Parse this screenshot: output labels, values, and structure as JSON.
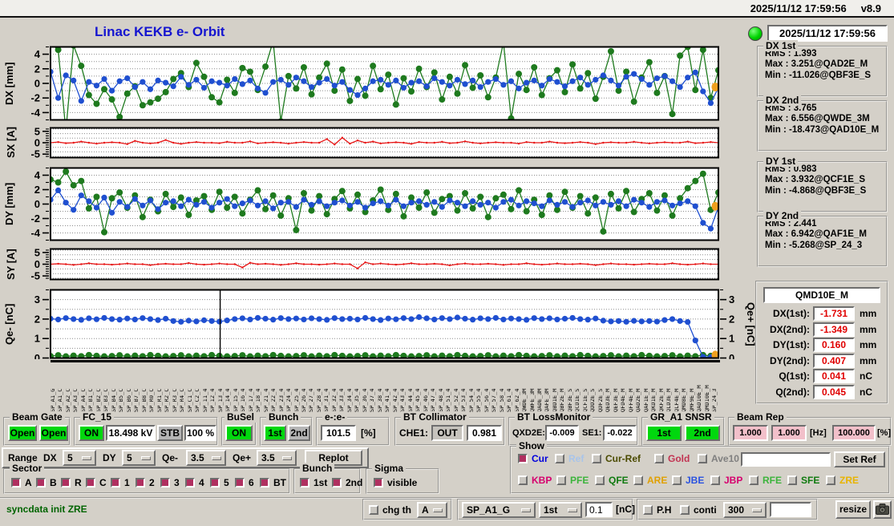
{
  "window": {
    "datetime": "2025/11/12 17:59:56",
    "version": "v8.9"
  },
  "header": {
    "title": "Linac KEKB e- Orbit",
    "status_datetime": "2025/11/12 17:59:56"
  },
  "stats": [
    {
      "title": "DX 1st",
      "rows": [
        [
          "RMS :",
          "1.393"
        ],
        [
          "Max :",
          "3.251@QAD2E_M"
        ],
        [
          "Min :",
          "-11.026@QBF3E_S"
        ]
      ]
    },
    {
      "title": "DX 2nd",
      "rows": [
        [
          "RMS :",
          "3.765"
        ],
        [
          "Max :",
          "6.556@QWDE_3M"
        ],
        [
          "Min :",
          "-18.473@QAD10E_M"
        ]
      ]
    },
    {
      "title": "DY 1st",
      "rows": [
        [
          "RMS :",
          "0.983"
        ],
        [
          "Max :",
          "3.932@QCF1E_S"
        ],
        [
          "Min :",
          "-4.868@QBF3E_S"
        ]
      ]
    },
    {
      "title": "DY 2nd",
      "rows": [
        [
          "RMS :",
          "2.441"
        ],
        [
          "Max :",
          "6.942@QAF1E_M"
        ],
        [
          "Min :",
          "-5.268@SP_24_3"
        ]
      ]
    }
  ],
  "monitor": {
    "title": "QMD10E_M",
    "rows": [
      {
        "label": "DX(1st):",
        "value": "-1.731",
        "unit": "mm"
      },
      {
        "label": "DX(2nd):",
        "value": "-1.349",
        "unit": "mm"
      },
      {
        "label": "DY(1st):",
        "value": "0.160",
        "unit": "mm"
      },
      {
        "label": "DY(2nd):",
        "value": "0.407",
        "unit": "mm"
      },
      {
        "label": "Q(1st):",
        "value": "0.041",
        "unit": "nC"
      },
      {
        "label": "Q(2nd):",
        "value": "0.045",
        "unit": "nC"
      }
    ]
  },
  "chart_data": {
    "colors": {
      "blue": "#1f4fd0",
      "green": "#1e7a1e",
      "red": "#e81414",
      "orange": "#f0a020"
    },
    "dx": {
      "type": "line",
      "ylabel": "DX [mm]",
      "ylim": [
        -5,
        5
      ],
      "ticks": [
        4,
        2,
        0,
        -2,
        -4
      ],
      "minor": 1,
      "grid": 1,
      "end": -0.5,
      "blue": [
        1.6,
        -2.0,
        1.1,
        0.4,
        -2.4,
        0.2,
        -0.3,
        0.6,
        -1.0,
        0.3,
        0.7,
        -0.5,
        0.2,
        -0.8,
        0.4,
        0.1,
        -0.4,
        0.9,
        -0.2,
        0.5,
        -0.6,
        0.3,
        0.1,
        -0.3,
        0.6,
        -0.1,
        0.4,
        -0.7,
        -1.3,
        0.2,
        0.5,
        -0.2,
        0.8,
        0.3,
        -0.5,
        0.1,
        0.6,
        -0.3,
        0.2,
        -0.9,
        -1.6,
        -0.7,
        0.3,
        0.5,
        -0.2,
        0.4,
        -0.6,
        0.1,
        0.3,
        -0.4,
        0.7,
        0.2,
        -0.3,
        0.5,
        -0.1,
        0.4,
        -0.5,
        0.2,
        0.6,
        -0.2,
        0.3,
        -0.7,
        0.1,
        0.4,
        -0.3,
        0.6,
        0.2,
        -0.4,
        0.3,
        0.8,
        -0.2,
        0.5,
        1.1,
        0.4,
        -0.3,
        0.9,
        1.3,
        0.6,
        -0.2,
        0.7,
        1.0,
        0.3,
        -0.5,
        0.8,
        1.5,
        -1.1,
        -2.7,
        -0.6
      ],
      "green": [
        5.5,
        4.6,
        -6.5,
        5.2,
        2.4,
        -1.6,
        -2.8,
        -0.8,
        -2.2,
        -4.6,
        -1.4,
        -0.4,
        -3.0,
        -2.6,
        -2.1,
        -1.2,
        0.6,
        1.4,
        -0.5,
        2.8,
        0.9,
        -1.9,
        -2.6,
        0.5,
        -1.3,
        2.1,
        1.6,
        -0.9,
        2.3,
        5.8,
        -5.2,
        1.0,
        -0.7,
        2.2,
        -1.5,
        0.8,
        2.7,
        -1.0,
        1.9,
        -2.4,
        0.6,
        -1.7,
        2.4,
        -0.8,
        1.2,
        -2.9,
        0.7,
        -1.1,
        2.0,
        -0.5,
        1.5,
        -2.2,
        0.9,
        -1.4,
        2.5,
        -0.6,
        1.1,
        -1.9,
        0.8,
        5.6,
        -4.8,
        1.3,
        -0.9,
        2.2,
        -1.6,
        0.7,
        1.8,
        -1.2,
        2.6,
        -0.7,
        1.4,
        -2.1,
        0.9,
        4.4,
        -1.0,
        1.6,
        -2.5,
        0.8,
        2.9,
        -1.3,
        1.0,
        -4.2,
        3.8,
        5.0,
        -0.9,
        4.6,
        -2.0,
        1.8
      ]
    },
    "sx": {
      "type": "line",
      "ylabel": "SX [A]",
      "ylim": [
        -6.5,
        6.5
      ],
      "ticks": [
        5,
        0,
        -5
      ],
      "minor": 1,
      "grid": 2,
      "red": [
        0,
        0.3,
        -0.2,
        0,
        0.5,
        0,
        -0.4,
        0,
        0.2,
        0,
        -0.6,
        0.8,
        0,
        -0.3,
        0,
        1.2,
        0,
        -0.5,
        0,
        0.3,
        0,
        0,
        -0.2,
        0.4,
        0,
        0,
        0.6,
        -0.3,
        0,
        0.2,
        0,
        -0.4,
        0,
        0.3,
        0,
        0,
        1.6,
        -0.8,
        2.2,
        -0.4,
        1.0,
        0,
        0.5,
        -0.3,
        0,
        0.2,
        0,
        -0.5,
        0.3,
        0,
        0,
        0.4,
        -0.2,
        0,
        0.6,
        0,
        -0.3,
        0,
        0.2,
        0,
        0,
        -0.4,
        0.3,
        0,
        0,
        0.5,
        0,
        -0.2,
        0,
        0.3,
        0,
        -0.6,
        0,
        0.2,
        0,
        0,
        0.4,
        0,
        -0.3,
        0,
        0.2,
        0,
        0,
        0.5,
        -0.2,
        0,
        0.3,
        0
      ]
    },
    "dy": {
      "type": "line",
      "ylabel": "DY [mm]",
      "ylim": [
        -5,
        5
      ],
      "ticks": [
        4,
        2,
        0,
        -2,
        -4
      ],
      "minor": 1,
      "grid": 1,
      "end": -0.3,
      "blue": [
        0.6,
        1.9,
        0.2,
        -0.8,
        1.2,
        0.4,
        -0.5,
        0.9,
        -1.2,
        0.3,
        -0.4,
        0.7,
        -0.2,
        0.5,
        -0.7,
        0.2,
        0.4,
        -0.3,
        0.6,
        -0.1,
        0.3,
        -0.5,
        0.2,
        0.7,
        -0.3,
        0.1,
        0.5,
        -0.2,
        0.4,
        -0.6,
        0.2,
        0.3,
        -0.4,
        0.6,
        -0.1,
        0.4,
        -0.3,
        0.2,
        0.5,
        -0.2,
        0.3,
        -0.5,
        0.1,
        0.4,
        -0.2,
        0.6,
        -0.3,
        0.2,
        0.4,
        -0.1,
        0.3,
        -0.4,
        0.5,
        0.2,
        -0.3,
        0.4,
        -0.1,
        0.2,
        -0.5,
        0.3,
        0.6,
        -0.2,
        0.4,
        0.1,
        -0.3,
        0.5,
        -0.1,
        0.3,
        -0.4,
        0.2,
        0.5,
        -0.2,
        0.3,
        -0.1,
        0.4,
        -0.3,
        0.6,
        0.2,
        -0.4,
        0.3,
        0.5,
        -0.2,
        0.1,
        0.4,
        -0.3,
        -2.6,
        -3.4,
        -0.4
      ],
      "green": [
        3.4,
        3.0,
        4.5,
        2.6,
        3.2,
        -0.6,
        1.0,
        -3.9,
        0.8,
        1.6,
        -0.5,
        1.2,
        -1.8,
        0.6,
        -1.0,
        1.4,
        -0.4,
        0.9,
        -1.5,
        0.5,
        1.1,
        -0.8,
        1.7,
        -0.5,
        1.0,
        -1.3,
        0.6,
        1.9,
        -0.7,
        1.2,
        -1.6,
        0.8,
        -3.6,
        1.5,
        -0.9,
        1.1,
        -1.4,
        0.7,
        1.8,
        -0.6,
        1.3,
        -1.1,
        0.5,
        2.0,
        -0.8,
        1.4,
        -1.7,
        0.9,
        -0.5,
        1.6,
        -1.2,
        0.7,
        1.1,
        -0.9,
        1.5,
        -0.6,
        1.0,
        -1.8,
        0.8,
        1.3,
        -0.7,
        1.9,
        -1.0,
        0.6,
        -1.5,
        1.2,
        -0.8,
        1.7,
        -0.5,
        1.1,
        -1.3,
        0.9,
        -3.8,
        1.4,
        -0.6,
        1.8,
        -1.1,
        0.7,
        1.5,
        -0.9,
        1.2,
        -1.6,
        0.8,
        2.2,
        3.2,
        4.2,
        -0.8,
        1.6
      ]
    },
    "sy": {
      "type": "line",
      "ylabel": "SY [A]",
      "ylim": [
        -6.5,
        6.5
      ],
      "ticks": [
        5,
        0,
        -5
      ],
      "minor": 1,
      "grid": 2,
      "red": [
        0,
        0.2,
        0,
        -0.3,
        0,
        0.4,
        0,
        0,
        -0.2,
        0,
        0.3,
        0,
        0,
        -0.4,
        0,
        0.2,
        0,
        0,
        0.5,
        0,
        -0.2,
        0,
        0.3,
        0,
        0,
        -1.4,
        0.6,
        0,
        0.2,
        0,
        -0.3,
        0,
        0.4,
        0,
        0,
        -0.2,
        0,
        0.3,
        0,
        0,
        -1.8,
        0.8,
        0,
        0.3,
        0,
        -0.2,
        0,
        0.4,
        0,
        0,
        0.2,
        0,
        -0.5,
        0,
        0.3,
        0,
        0,
        0.2,
        0,
        -0.3,
        0,
        0,
        0.4,
        0,
        -0.2,
        0,
        0.3,
        0,
        0,
        0.2,
        0,
        -0.4,
        0,
        0.3,
        0,
        0,
        -0.2,
        0,
        0.2,
        0,
        0,
        0.4,
        0,
        -0.2,
        0,
        0.3,
        0,
        0
      ]
    },
    "q": {
      "type": "line",
      "ylabel_left": "Qe- [nC]",
      "ylabel_right": "Qe+ [nC]",
      "ylim": [
        0,
        3.5
      ],
      "ticks": [
        3,
        2,
        1,
        0
      ],
      "minor": 0.5,
      "grid": 0.5,
      "cursor": 0.254,
      "end": 0.15,
      "blue": [
        2.02,
        1.98,
        2.05,
        2.0,
        1.96,
        2.04,
        1.99,
        2.06,
        2.0,
        1.97,
        2.03,
        1.98,
        2.05,
        2.0,
        1.95,
        2.02,
        1.9,
        1.86,
        1.92,
        1.88,
        1.94,
        1.9,
        1.87,
        1.93,
        2.0,
        2.04,
        1.98,
        2.06,
        2.02,
        1.97,
        2.05,
        2.0,
        2.03,
        1.98,
        2.04,
        2.0,
        1.96,
        2.05,
        2.0,
        2.02,
        1.98,
        2.06,
        2.0,
        1.95,
        2.03,
        1.99,
        2.05,
        2.0,
        2.1,
        2.04,
        1.98,
        2.05,
        2.0,
        2.08,
        2.02,
        1.97,
        2.04,
        2.0,
        2.06,
        1.98,
        2.03,
        2.0,
        1.96,
        2.05,
        2.0,
        2.04,
        1.98,
        2.02,
        2.06,
        2.0,
        1.97,
        2.03,
        1.92,
        1.88,
        1.9,
        1.86,
        1.91,
        1.88,
        1.9,
        1.87,
        1.95,
        2.0,
        1.9,
        1.85,
        0.9,
        0.06,
        0.05,
        0.05
      ],
      "green": [
        0.1,
        0.14,
        0.08,
        0.12,
        0.09,
        0.15,
        0.11,
        0.08,
        0.1,
        0.14,
        0.08,
        0.12,
        0.09,
        0.15,
        0.11,
        0.08,
        0.1,
        0.14,
        0.08,
        0.12,
        0.09,
        0.15,
        0.11,
        0.08,
        0.1,
        0.14,
        0.08,
        0.12,
        0.09,
        0.15,
        0.11,
        0.08,
        0.1,
        0.14,
        0.08,
        0.12,
        0.09,
        0.15,
        0.11,
        0.08,
        0.1,
        0.14,
        0.08,
        0.12,
        0.09,
        0.15,
        0.11,
        0.08,
        0.1,
        0.14,
        0.08,
        0.12,
        0.09,
        0.15,
        0.11,
        0.08,
        0.1,
        0.14,
        0.08,
        0.12,
        0.09,
        0.15,
        0.11,
        0.08,
        0.1,
        0.14,
        0.08,
        0.12,
        0.09,
        0.15,
        0.11,
        0.08,
        0.1,
        0.14,
        0.08,
        0.12,
        0.09,
        0.15,
        0.11,
        0.08,
        0.1,
        0.14,
        0.08,
        0.12,
        0.09,
        0.15,
        0.11,
        0.08
      ]
    },
    "x_labels": [
      "SP_A1_G",
      "SP_A1_C",
      "SP_A2_C",
      "SP_A3_C",
      "SP_A4_C",
      "SP_B1_C",
      "SP_B2_C",
      "SP_B3_C",
      "SP_B4_C",
      "SP_B5_C",
      "SP_B6_C",
      "SP_B7_C",
      "SP_B8_C",
      "SP_R0_C",
      "SP_R1_C",
      "SP_R2_C",
      "SP_R3_C",
      "SP_R4_C",
      "SP_C1_C",
      "SP_C2_C",
      "SP_11_4",
      "SP_12_4",
      "SP_13_4",
      "SP_14_4",
      "SP_15_4",
      "SP_16_4",
      "SP_17_4",
      "SP_18_4",
      "SP_21_4",
      "SP_22_4",
      "SP_23_4",
      "SP_24_4",
      "SP_25_4",
      "SP_26_4",
      "SP_27_4",
      "SP_28_4",
      "SP_31_4",
      "SP_32_4",
      "SP_33_4",
      "SP_34_4",
      "SP_35_4",
      "SP_36_4",
      "SP_37_4",
      "SP_38_4",
      "SP_41_4",
      "SP_42_4",
      "SP_43_4",
      "SP_44_4",
      "SP_45_4",
      "SP_46_4",
      "SP_47_4",
      "SP_48_4",
      "SP_51_4",
      "SP_52_4",
      "SP_53_4",
      "SP_54_4",
      "SP_55_4",
      "SP_56_4",
      "SP_57_4",
      "SP_58_4",
      "SP_61_4",
      "SP_62_4",
      "QWDE_3M",
      "QWFE_3M",
      "QADE_3M",
      "QAFE_3M",
      "QBD1E_M",
      "QBF2E_M",
      "QBF3E_S",
      "QCD1E_S",
      "QCF1E_S",
      "QDD2E_S",
      "QDF2E_S",
      "QED3E_M",
      "QEF3E_M",
      "QFD4E_M",
      "QFF4E_M",
      "QAD2E_M",
      "QAF1E_M",
      "QKD1E_M",
      "QKF2E_M",
      "QLD3E_M",
      "QLF4E_M",
      "QMD8E_M",
      "QMF9E_M",
      "QAD10E_M",
      "QMD10E_M",
      "SP_24_3"
    ]
  },
  "controls": {
    "beam_gate": {
      "label": "Beam Gate",
      "b1": "Open",
      "b2": "Open"
    },
    "fc15": {
      "label": "FC_15",
      "on": "ON",
      "kv": "18.498 kV",
      "stb": "STB",
      "pct": "100 %"
    },
    "busel": {
      "label": "BuSel",
      "on": "ON"
    },
    "bunch": {
      "label": "Bunch",
      "b1": "1st",
      "b2": "2nd"
    },
    "ee": {
      "label": "e-:e-",
      "value": "101.5",
      "unit": "[%]"
    },
    "btcol": {
      "label": "BT Collimator",
      "k1": "CHE1:",
      "state": "OUT",
      "value": "0.981"
    },
    "btloss": {
      "label": "BT LossMonitor",
      "k1": "QXD2E:",
      "v1": "-0.009",
      "k2": "SE1:",
      "v2": "-0.022"
    },
    "gr": {
      "label": "GR_A1 SNSR",
      "b1": "1st",
      "b2": "2nd"
    },
    "beam_rep": {
      "label": "Beam Rep",
      "v1": "1.000",
      "v2": "1.000",
      "hz": "[Hz]",
      "v3": "100.000",
      "pct": "[%]"
    }
  },
  "range": {
    "label0": "Range",
    "dxk": "DX",
    "dx": "5",
    "dyk": "DY",
    "dy": "5",
    "qmk": "Qe-",
    "qm": "3.5",
    "qpk": "Qe+",
    "qp": "3.5",
    "replot": "Replot"
  },
  "show": {
    "label": "Show",
    "row1": [
      {
        "label": "Cur",
        "color": "#0000dd",
        "checked": true
      },
      {
        "label": "Ref",
        "color": "#a8c4ea",
        "checked": false
      },
      {
        "label": "Cur-Ref",
        "color": "#4b4b00",
        "checked": false
      },
      {
        "label": "Gold",
        "color": "#c23352",
        "checked": false
      },
      {
        "label": "Ave10",
        "color": "#808080",
        "checked": false
      }
    ],
    "input_value": "",
    "set_ref": "Set Ref",
    "row2": [
      {
        "label": "KBP",
        "color": "#d6006e",
        "checked": false
      },
      {
        "label": "PFE",
        "color": "#3cb43c",
        "checked": false
      },
      {
        "label": "QFE",
        "color": "#0f7a0f",
        "checked": false
      },
      {
        "label": "ARE",
        "color": "#e0a000",
        "checked": false
      },
      {
        "label": "JBE",
        "color": "#2a52e0",
        "checked": false
      },
      {
        "label": "JBP",
        "color": "#d6006e",
        "checked": false
      },
      {
        "label": "RFE",
        "color": "#3cb43c",
        "checked": false
      },
      {
        "label": "SFE",
        "color": "#0f7a0f",
        "checked": false
      },
      {
        "label": "ZRE",
        "color": "#e8b400",
        "checked": false
      }
    ]
  },
  "sector": {
    "label": "Sector",
    "items": [
      "A",
      "B",
      "R",
      "C",
      "1",
      "2",
      "3",
      "4",
      "5",
      "6",
      "BT"
    ]
  },
  "bunchsel": {
    "label": "Bunch",
    "items": [
      "1st",
      "2nd"
    ]
  },
  "sigma": {
    "label": "Sigma",
    "items": [
      "visible"
    ]
  },
  "statusbar": {
    "message": "syncdata init ZRE",
    "chg_label": "chg th",
    "chg_value": "A",
    "sp": "SP_A1_G",
    "bunch": "1st",
    "thr": "0.1",
    "unit": "[nC]",
    "ph": "P.H",
    "conti": "conti",
    "num": "300",
    "input_value": "",
    "resize": "resize"
  }
}
